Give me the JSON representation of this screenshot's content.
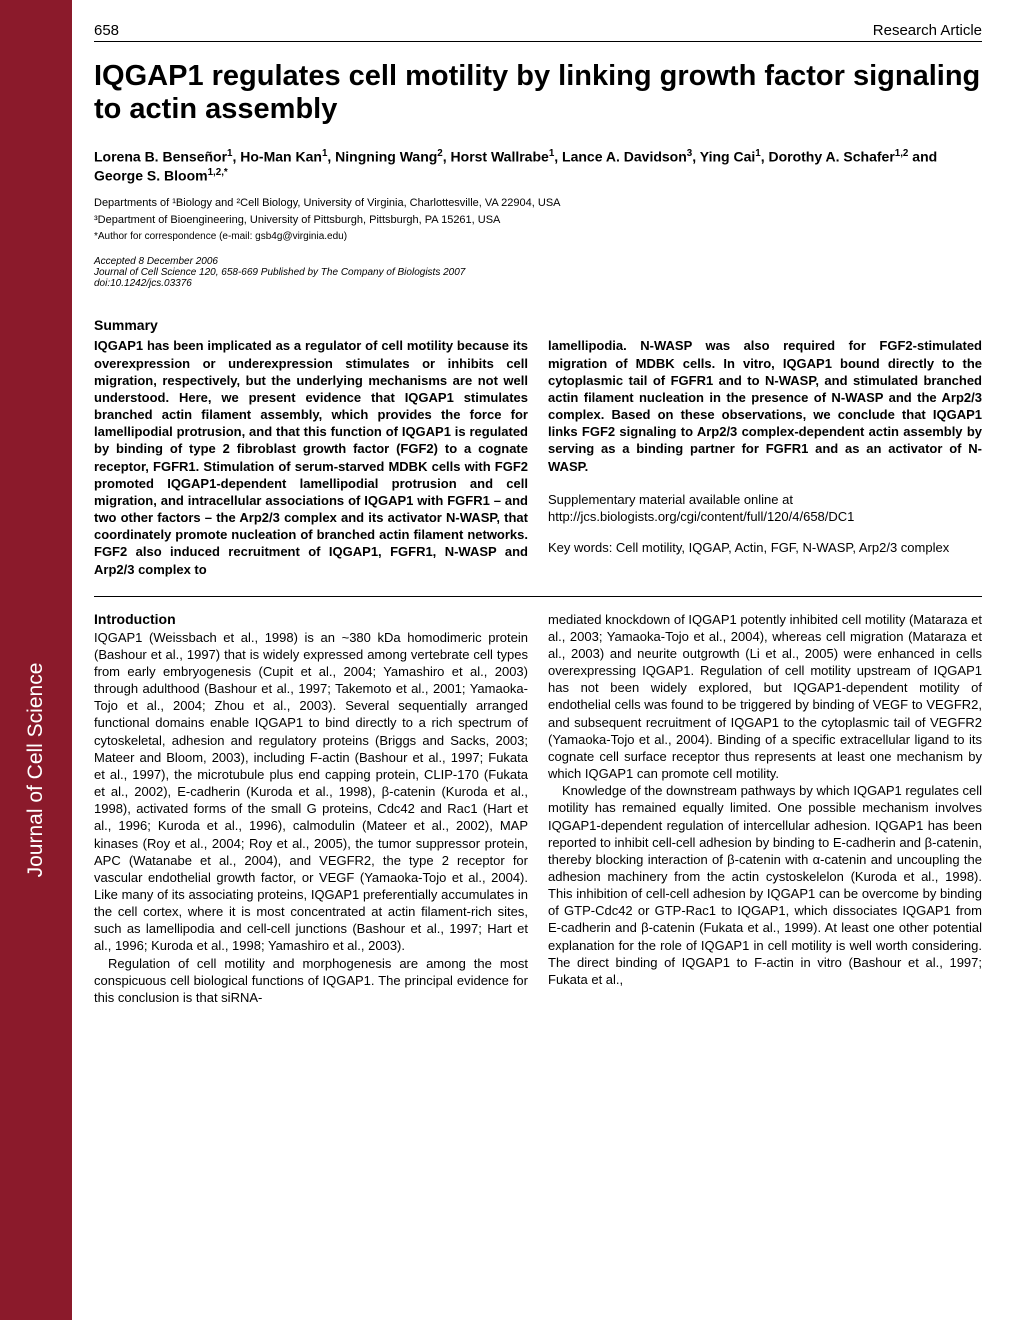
{
  "header": {
    "page_number": "658",
    "article_type": "Research Article"
  },
  "sidebar": {
    "text": "Journal of Cell Science"
  },
  "title": "IQGAP1 regulates cell motility by linking growth factor signaling to actin assembly",
  "authors_html": "Lorena B. Benseñor<sup>1</sup>, Ho-Man Kan<sup>1</sup>, Ningning Wang<sup>2</sup>, Horst Wallrabe<sup>1</sup>, Lance A. Davidson<sup>3</sup>, Ying Cai<sup>1</sup>, Dorothy A. Schafer<sup>1,2</sup> and George S. Bloom<sup>1,2,*</sup>",
  "affiliations": "Departments of ¹Biology and ²Cell Biology, University of Virginia, Charlottesville, VA 22904, USA",
  "affiliations2": "³Department of Bioengineering, University of Pittsburgh, Pittsburgh, PA 15261, USA",
  "correspondence": "*Author for correspondence (e-mail: gsb4g@virginia.edu)",
  "accepted": "Accepted 8 December 2006",
  "journal_info": "Journal of Cell Science 120, 658-669 Published by The Company of Biologists 2007",
  "doi": "doi:10.1242/jcs.03376",
  "summary": {
    "heading": "Summary",
    "left": "IQGAP1 has been implicated as a regulator of cell motility because its overexpression or underexpression stimulates or inhibits cell migration, respectively, but the underlying mechanisms are not well understood. Here, we present evidence that IQGAP1 stimulates branched actin filament assembly, which provides the force for lamellipodial protrusion, and that this function of IQGAP1 is regulated by binding of type 2 fibroblast growth factor (FGF2) to a cognate receptor, FGFR1. Stimulation of serum-starved MDBK cells with FGF2 promoted IQGAP1-dependent lamellipodial protrusion and cell migration, and intracellular associations of IQGAP1 with FGFR1 – and two other factors – the Arp2/3 complex and its activator N-WASP, that coordinately promote nucleation of branched actin filament networks. FGF2 also induced recruitment of IQGAP1, FGFR1, N-WASP and Arp2/3 complex to",
    "right": "lamellipodia. N-WASP was also required for FGF2-stimulated migration of MDBK cells. In vitro, IQGAP1 bound directly to the cytoplasmic tail of FGFR1 and to N-WASP, and stimulated branched actin filament nucleation in the presence of N-WASP and the Arp2/3 complex. Based on these observations, we conclude that IQGAP1 links FGF2 signaling to Arp2/3 complex-dependent actin assembly by serving as a binding partner for FGFR1 and as an activator of N-WASP.",
    "supp1": "Supplementary material available online at",
    "supp2": "http://jcs.biologists.org/cgi/content/full/120/4/658/DC1",
    "keywords": "Key words: Cell motility, IQGAP, Actin, FGF, N-WASP, Arp2/3 complex"
  },
  "introduction": {
    "heading": "Introduction",
    "left_p1": "IQGAP1 (Weissbach et al., 1998) is an ~380 kDa homodimeric protein (Bashour et al., 1997) that is widely expressed among vertebrate cell types from early embryogenesis (Cupit et al., 2004; Yamashiro et al., 2003) through adulthood (Bashour et al., 1997; Takemoto et al., 2001; Yamaoka-Tojo et al., 2004; Zhou et al., 2003). Several sequentially arranged functional domains enable IQGAP1 to bind directly to a rich spectrum of cytoskeletal, adhesion and regulatory proteins (Briggs and Sacks, 2003; Mateer and Bloom, 2003), including F-actin (Bashour et al., 1997; Fukata et al., 1997), the microtubule plus end capping protein, CLIP-170 (Fukata et al., 2002), E-cadherin (Kuroda et al., 1998), β-catenin (Kuroda et al., 1998), activated forms of the small G proteins, Cdc42 and Rac1 (Hart et al., 1996; Kuroda et al., 1996), calmodulin (Mateer et al., 2002), MAP kinases (Roy et al., 2004; Roy et al., 2005), the tumor suppressor protein, APC (Watanabe et al., 2004), and VEGFR2, the type 2 receptor for vascular endothelial growth factor, or VEGF (Yamaoka-Tojo et al., 2004). Like many of its associating proteins, IQGAP1 preferentially accumulates in the cell cortex, where it is most concentrated at actin filament-rich sites, such as lamellipodia and cell-cell junctions (Bashour et al., 1997; Hart et al., 1996; Kuroda et al., 1998; Yamashiro et al., 2003).",
    "left_p2": "Regulation of cell motility and morphogenesis are among the most conspicuous cell biological functions of IQGAP1. The principal evidence for this conclusion is that siRNA-",
    "right_p1": "mediated knockdown of IQGAP1 potently inhibited cell motility (Mataraza et al., 2003; Yamaoka-Tojo et al., 2004), whereas cell migration (Mataraza et al., 2003) and neurite outgrowth (Li et al., 2005) were enhanced in cells overexpressing IQGAP1. Regulation of cell motility upstream of IQGAP1 has not been widely explored, but IQGAP1-dependent motility of endothelial cells was found to be triggered by binding of VEGF to VEGFR2, and subsequent recruitment of IQGAP1 to the cytoplasmic tail of VEGFR2 (Yamaoka-Tojo et al., 2004). Binding of a specific extracellular ligand to its cognate cell surface receptor thus represents at least one mechanism by which IQGAP1 can promote cell motility.",
    "right_p2": "Knowledge of the downstream pathways by which IQGAP1 regulates cell motility has remained equally limited. One possible mechanism involves IQGAP1-dependent regulation of intercellular adhesion. IQGAP1 has been reported to inhibit cell-cell adhesion by binding to E-cadherin and β-catenin, thereby blocking interaction of β-catenin with α-catenin and uncoupling the adhesion machinery from the actin cystoskelelon (Kuroda et al., 1998). This inhibition of cell-cell adhesion by IQGAP1 can be overcome by binding of GTP-Cdc42 or GTP-Rac1 to IQGAP1, which dissociates IQGAP1 from E-cadherin and β-catenin (Fukata et al., 1999). At least one other potential explanation for the role of IQGAP1 in cell motility is well worth considering. The direct binding of IQGAP1 to F-actin in vitro (Bashour et al., 1997; Fukata et al.,"
  }
}
